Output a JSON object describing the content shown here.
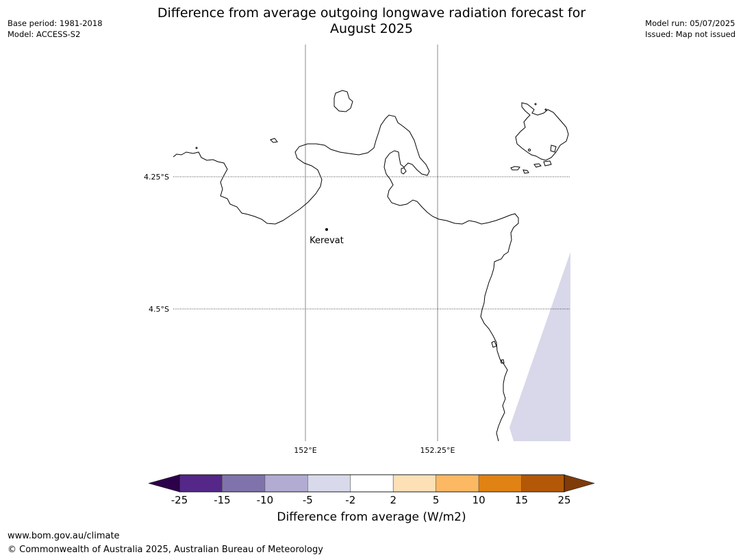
{
  "header": {
    "title_line1": "Difference from average outgoing longwave radiation forecast for",
    "title_line2": "August 2025",
    "base_period": "Base period: 1981-2018",
    "model": "Model: ACCESS-S2",
    "model_run": "Model run: 05/07/2025",
    "issued": "Issued: Map not issued"
  },
  "map": {
    "lat_labels": [
      "4.25°S",
      "4.5°S"
    ],
    "lon_labels": [
      "152°E",
      "152.25°E"
    ],
    "place": {
      "name": "Kerevat"
    },
    "land_outline_color": "#000000",
    "anomaly_fill_color": "#d8d8ea"
  },
  "colorbar": {
    "title": "Difference from average (W/m2)",
    "ticks": [
      "-25",
      "-15",
      "-10",
      "-5",
      "-2",
      "2",
      "5",
      "10",
      "15",
      "25"
    ],
    "colors": [
      "#2d004b",
      "#542788",
      "#8073ac",
      "#b2abd2",
      "#d8daeb",
      "#ffffff",
      "#fee0b6",
      "#fdb863",
      "#e08214",
      "#b35806",
      "#7f3b08"
    ]
  },
  "footer": {
    "url": "www.bom.gov.au/climate",
    "copyright": "© Commonwealth of Australia 2025, Australian Bureau of Meteorology"
  }
}
